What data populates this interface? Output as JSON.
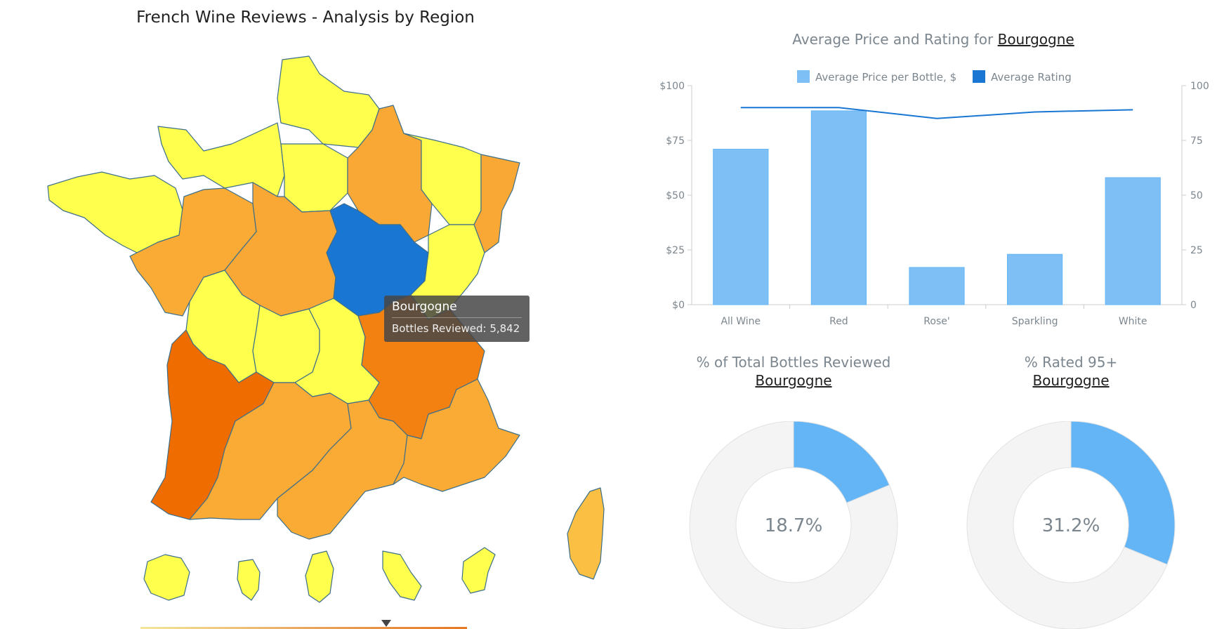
{
  "map": {
    "title": "French Wine Reviews - Analysis by Region",
    "selected_region": "Bourgogne",
    "tooltip": {
      "title": "Bourgogne",
      "label": "Bottles Reviewed:",
      "value": "5,842"
    },
    "colors": {
      "selected": "#1976d2",
      "low": "#ffff4d",
      "mid": "#f9ab35",
      "high": "#f28112",
      "top": "#ef6c00",
      "corsica": "#fbc043"
    }
  },
  "bar_chart": {
    "title_prefix": "Average Price and Rating for",
    "region": "Bourgogne"
  },
  "chart_data": [
    {
      "type": "bar",
      "title": "Average Price and Rating for Bourgogne",
      "categories": [
        "All Wine",
        "Red",
        "Rose'",
        "Sparkling",
        "White"
      ],
      "series": [
        {
          "name": "Average Price per Bottle, $",
          "type": "bar",
          "axis": "left",
          "color": "#7ebff5",
          "values": [
            71,
            88.5,
            17,
            23,
            58
          ]
        },
        {
          "name": "Average Rating",
          "type": "line",
          "axis": "right",
          "color": "#1976d2",
          "values": [
            90,
            90,
            85,
            88,
            89
          ]
        }
      ],
      "y_left": {
        "min": 0,
        "max": 100,
        "ticks": [
          "$0",
          "$25",
          "$50",
          "$75",
          "$100"
        ]
      },
      "y_right": {
        "min": 0,
        "max": 100,
        "ticks": [
          "0",
          "25",
          "50",
          "75",
          "100"
        ]
      },
      "legend_position": "top-center",
      "grid": false
    },
    {
      "type": "pie",
      "title": "% of Total Bottles Reviewed",
      "subtitle": "Bourgogne",
      "values": [
        18.7,
        81.3
      ],
      "center_label": "18.7%",
      "colors": [
        "#64b5f6",
        "#f4f4f4"
      ]
    },
    {
      "type": "pie",
      "title": "% Rated 95+",
      "subtitle": "Bourgogne",
      "values": [
        31.2,
        68.8
      ],
      "center_label": "31.2%",
      "colors": [
        "#64b5f6",
        "#f4f4f4"
      ]
    }
  ]
}
